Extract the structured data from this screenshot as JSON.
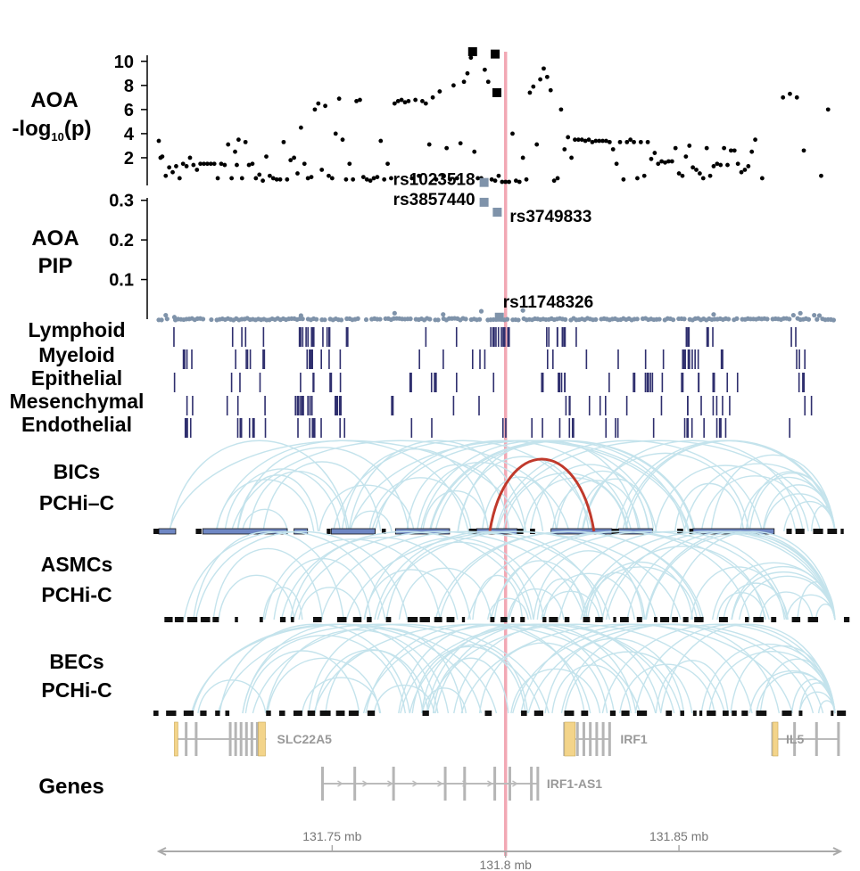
{
  "chart_data": {
    "type": "scatter",
    "x_unit": "mb",
    "xlim": [
      131.7,
      131.895
    ],
    "highlight_x": 131.8,
    "axis": {
      "ticks": [
        {
          "x": 131.75,
          "label": "131.75 mb"
        },
        {
          "x": 131.8,
          "label": "131.8 mb"
        },
        {
          "x": 131.85,
          "label": "131.85 mb"
        }
      ]
    },
    "tracks": {
      "pval": {
        "label_line1": "AOA",
        "label_line2_pre": "-log",
        "label_line2_sub": "10",
        "label_line2_post": "(p)",
        "ylim": [
          0,
          10.5
        ],
        "ticks": [
          {
            "v": 2,
            "t": "2"
          },
          {
            "v": 4,
            "t": "4"
          },
          {
            "v": 6,
            "t": "6"
          },
          {
            "v": 8,
            "t": "8"
          },
          {
            "v": 10,
            "t": "10"
          }
        ],
        "points": [
          [
            131.7,
            3.4
          ],
          [
            131.7005,
            2.0
          ],
          [
            131.701,
            2.1
          ],
          [
            131.702,
            0.5
          ],
          [
            131.703,
            1.2
          ],
          [
            131.704,
            0.8
          ],
          [
            131.705,
            1.3
          ],
          [
            131.706,
            0.3
          ],
          [
            131.707,
            1.5
          ],
          [
            131.708,
            1.3
          ],
          [
            131.709,
            2.0
          ],
          [
            131.71,
            1.4
          ],
          [
            131.711,
            1.0
          ],
          [
            131.712,
            1.5
          ],
          [
            131.713,
            1.5
          ],
          [
            131.714,
            1.5
          ],
          [
            131.715,
            1.5
          ],
          [
            131.716,
            1.5
          ],
          [
            131.717,
            0.3
          ],
          [
            131.718,
            1.5
          ],
          [
            131.719,
            1.4
          ],
          [
            131.72,
            3.1
          ],
          [
            131.721,
            0.3
          ],
          [
            131.722,
            2.5
          ],
          [
            131.7225,
            1.4
          ],
          [
            131.723,
            3.5
          ],
          [
            131.724,
            0.3
          ],
          [
            131.725,
            3.3
          ],
          [
            131.726,
            1.4
          ],
          [
            131.727,
            1.5
          ],
          [
            131.728,
            0.3
          ],
          [
            131.729,
            0.6
          ],
          [
            131.73,
            0.1
          ],
          [
            131.731,
            2.1
          ],
          [
            131.732,
            0.5
          ],
          [
            131.733,
            0.3
          ],
          [
            131.734,
            0.2
          ],
          [
            131.735,
            0.2
          ],
          [
            131.736,
            3.3
          ],
          [
            131.737,
            0.2
          ],
          [
            131.738,
            1.8
          ],
          [
            131.739,
            2.0
          ],
          [
            131.74,
            0.7
          ],
          [
            131.741,
            4.5
          ],
          [
            131.742,
            1.5
          ],
          [
            131.743,
            0.3
          ],
          [
            131.744,
            0.4
          ],
          [
            131.745,
            6.0
          ],
          [
            131.746,
            6.5
          ],
          [
            131.747,
            1.0
          ],
          [
            131.748,
            6.3
          ],
          [
            131.749,
            0.5
          ],
          [
            131.75,
            0.3
          ],
          [
            131.751,
            4.0
          ],
          [
            131.752,
            6.9
          ],
          [
            131.753,
            3.5
          ],
          [
            131.754,
            0.2
          ],
          [
            131.755,
            1.5
          ],
          [
            131.756,
            0.2
          ],
          [
            131.757,
            6.7
          ],
          [
            131.758,
            6.8
          ],
          [
            131.759,
            0.4
          ],
          [
            131.76,
            0.2
          ],
          [
            131.761,
            0.1
          ],
          [
            131.762,
            0.3
          ],
          [
            131.763,
            0.4
          ],
          [
            131.764,
            3.4
          ],
          [
            131.765,
            0.2
          ],
          [
            131.766,
            1.5
          ],
          [
            131.767,
            0.3
          ],
          [
            131.768,
            6.5
          ],
          [
            131.769,
            6.7
          ],
          [
            131.77,
            6.8
          ],
          [
            131.771,
            6.6
          ],
          [
            131.772,
            6.7
          ],
          [
            131.773,
            0.3
          ],
          [
            131.774,
            6.8
          ],
          [
            131.775,
            0.5
          ],
          [
            131.776,
            6.7
          ],
          [
            131.777,
            6.5
          ],
          [
            131.778,
            3.1
          ],
          [
            131.779,
            7.0
          ],
          [
            131.78,
            0.2
          ],
          [
            131.781,
            7.5
          ],
          [
            131.782,
            0.5
          ],
          [
            131.783,
            2.8
          ],
          [
            131.784,
            0.2
          ],
          [
            131.785,
            8.0
          ],
          [
            131.786,
            0.3
          ],
          [
            131.787,
            3.2
          ],
          [
            131.788,
            8.3
          ],
          [
            131.789,
            9.0
          ],
          [
            131.79,
            10.3
          ],
          [
            131.791,
            2.5
          ],
          [
            131.792,
            0.3
          ],
          [
            131.793,
            0.3
          ],
          [
            131.794,
            9.3
          ],
          [
            131.795,
            8.3
          ],
          [
            131.796,
            0.2
          ],
          [
            131.797,
            0.1
          ],
          [
            131.798,
            0.5
          ],
          [
            131.799,
            0.0
          ],
          [
            131.8,
            0.0
          ],
          [
            131.801,
            0.0
          ],
          [
            131.802,
            4.0
          ],
          [
            131.803,
            0.1
          ],
          [
            131.804,
            0.0
          ],
          [
            131.805,
            2.0
          ],
          [
            131.806,
            0.2
          ],
          [
            131.807,
            7.4
          ],
          [
            131.808,
            7.9
          ],
          [
            131.809,
            3.1
          ],
          [
            131.81,
            8.5
          ],
          [
            131.811,
            9.4
          ],
          [
            131.812,
            8.7
          ],
          [
            131.813,
            7.6
          ],
          [
            131.814,
            0.1
          ],
          [
            131.815,
            0.3
          ],
          [
            131.816,
            6.0
          ],
          [
            131.817,
            2.7
          ],
          [
            131.818,
            3.7
          ],
          [
            131.819,
            2.0
          ],
          [
            131.82,
            3.5
          ],
          [
            131.821,
            3.5
          ],
          [
            131.822,
            3.5
          ],
          [
            131.823,
            3.4
          ],
          [
            131.824,
            3.5
          ],
          [
            131.825,
            3.3
          ],
          [
            131.826,
            3.4
          ],
          [
            131.827,
            3.4
          ],
          [
            131.828,
            3.4
          ],
          [
            131.829,
            3.4
          ],
          [
            131.83,
            3.3
          ],
          [
            131.831,
            2.7
          ],
          [
            131.832,
            1.5
          ],
          [
            131.833,
            3.3
          ],
          [
            131.834,
            0.2
          ],
          [
            131.835,
            3.3
          ],
          [
            131.836,
            3.5
          ],
          [
            131.837,
            3.3
          ],
          [
            131.838,
            0.3
          ],
          [
            131.839,
            3.3
          ],
          [
            131.84,
            0.5
          ],
          [
            131.841,
            3.3
          ],
          [
            131.842,
            1.9
          ],
          [
            131.843,
            2.4
          ],
          [
            131.844,
            1.5
          ],
          [
            131.845,
            1.7
          ],
          [
            131.846,
            1.6
          ],
          [
            131.847,
            1.7
          ],
          [
            131.848,
            1.7
          ],
          [
            131.849,
            2.8
          ],
          [
            131.85,
            0.7
          ],
          [
            131.851,
            0.5
          ],
          [
            131.852,
            2.1
          ],
          [
            131.853,
            3.0
          ],
          [
            131.854,
            1.2
          ],
          [
            131.855,
            1.0
          ],
          [
            131.856,
            0.7
          ],
          [
            131.857,
            0.3
          ],
          [
            131.858,
            2.8
          ],
          [
            131.859,
            0.5
          ],
          [
            131.86,
            1.3
          ],
          [
            131.861,
            1.5
          ],
          [
            131.862,
            1.4
          ],
          [
            131.863,
            2.8
          ],
          [
            131.864,
            1.4
          ],
          [
            131.865,
            2.6
          ],
          [
            131.866,
            2.6
          ],
          [
            131.867,
            1.5
          ],
          [
            131.868,
            0.8
          ],
          [
            131.869,
            1.0
          ],
          [
            131.87,
            1.3
          ],
          [
            131.871,
            2.5
          ],
          [
            131.872,
            3.5
          ],
          [
            131.874,
            0.3
          ],
          [
            131.88,
            7.0
          ],
          [
            131.882,
            7.3
          ],
          [
            131.884,
            7.0
          ],
          [
            131.886,
            2.6
          ],
          [
            131.891,
            0.5
          ],
          [
            131.893,
            6.0
          ]
        ],
        "square_points": [
          [
            131.7905,
            10.8
          ],
          [
            131.797,
            10.6
          ],
          [
            131.7975,
            7.4
          ]
        ]
      },
      "pip": {
        "label_line1": "AOA",
        "label_line2": "PIP",
        "ylim": [
          0,
          0.36
        ],
        "ticks": [
          {
            "v": 0.1,
            "t": "0.1"
          },
          {
            "v": 0.2,
            "t": "0.2"
          },
          {
            "v": 0.3,
            "t": "0.3"
          }
        ],
        "labeled_points": [
          {
            "x": 131.7938,
            "y": 0.345,
            "label": "rs1023518"
          },
          {
            "x": 131.7938,
            "y": 0.295,
            "label": "rs3857440"
          },
          {
            "x": 131.7976,
            "y": 0.27,
            "label": "rs3749833"
          },
          {
            "x": 131.7982,
            "y": 0.005,
            "label": "rs11748326"
          }
        ],
        "baseline_points": [
          [
            131.702,
            0.01
          ],
          [
            131.7045,
            0.005
          ],
          [
            131.741,
            0.009
          ],
          [
            131.768,
            0.015
          ],
          [
            131.782,
            0.012
          ],
          [
            131.793,
            0.02
          ],
          [
            131.805,
            0.022
          ],
          [
            131.86,
            0.012
          ],
          [
            131.883,
            0.01
          ],
          [
            131.885,
            0.015
          ],
          [
            131.889,
            0.01
          ],
          [
            131.8905,
            0.009
          ]
        ]
      },
      "accessibility": {
        "cell_types": [
          "Lymphoid",
          "Myeloid",
          "Epithelial",
          "Mesenchymal",
          "Endothelial"
        ]
      },
      "interactions": [
        {
          "label_line1": "BICs",
          "label_line2": "PCHi–C"
        },
        {
          "label_line1": "ASMCs",
          "label_line2": "PCHi-C"
        },
        {
          "label_line1": "BECs",
          "label_line2": "PCHi-C"
        }
      ],
      "genes": {
        "label": "Genes",
        "items": [
          {
            "name": "SLC22A5",
            "start": 131.705,
            "end": 131.731,
            "strand": "+"
          },
          {
            "name": "IRF1",
            "start": 131.817,
            "end": 131.83,
            "strand": "-"
          },
          {
            "name": "IL5",
            "start": 131.877,
            "end": 131.896,
            "strand": "-"
          },
          {
            "name": "IRF1-AS1",
            "start": 131.7472,
            "end": 131.8093,
            "strand": "+"
          }
        ]
      }
    }
  }
}
